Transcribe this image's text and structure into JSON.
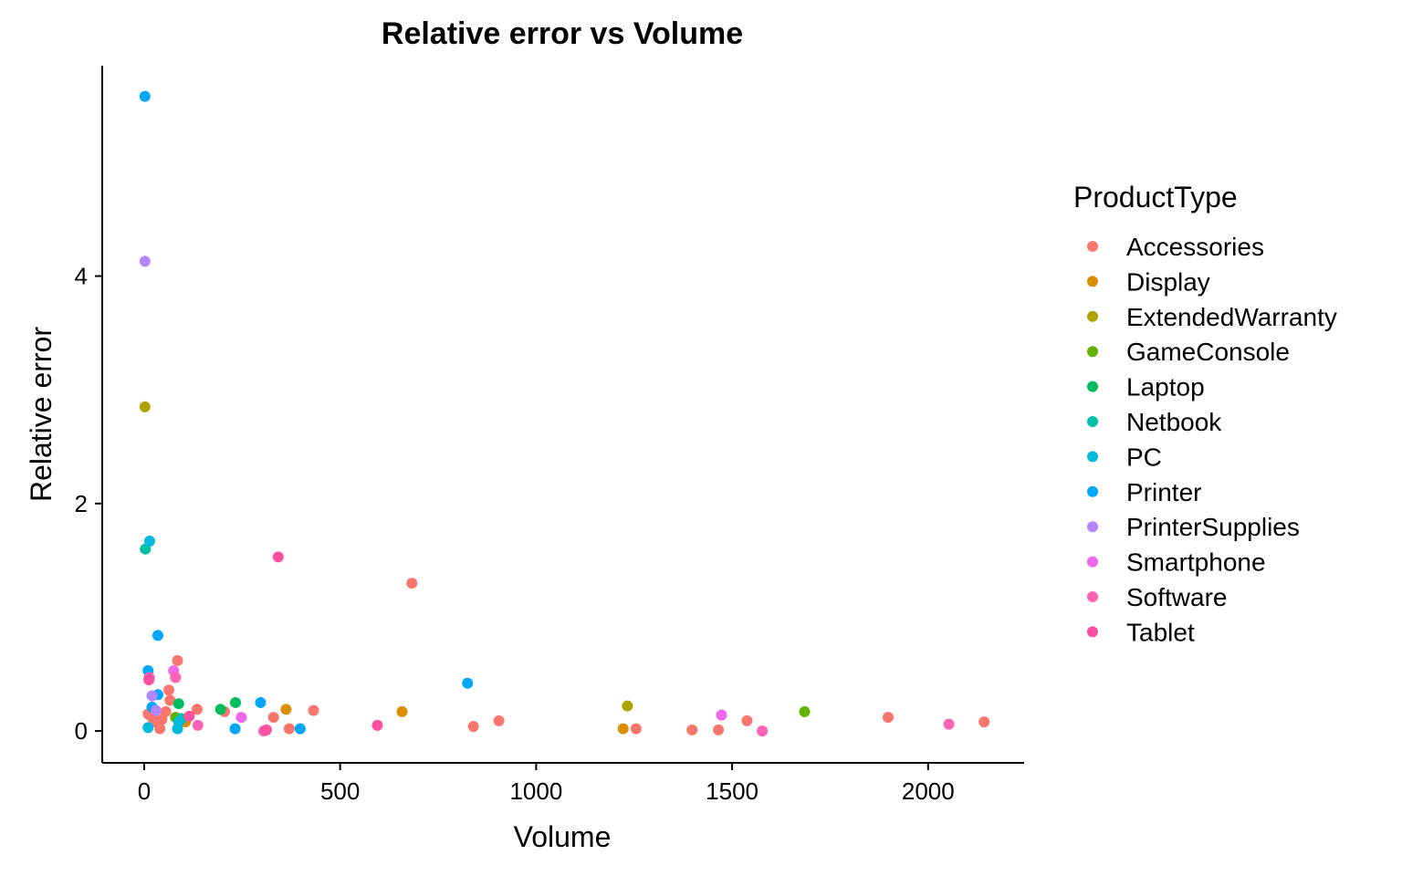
{
  "chart_data": {
    "type": "scatter",
    "title": "Relative error vs Volume",
    "xlabel": "Volume",
    "ylabel": "Relative error",
    "xlim": [
      -107,
      2245
    ],
    "ylim": [
      -0.28,
      5.85
    ],
    "xticks": [
      0,
      500,
      1000,
      1500,
      2000
    ],
    "xtick_labels": [
      "0",
      "500",
      "1000",
      "1500",
      "2000"
    ],
    "yticks": [
      0,
      2,
      4
    ],
    "ytick_labels": [
      "0",
      "2",
      "4"
    ],
    "grid": false,
    "legend": {
      "title": "ProductType",
      "placement": "right"
    },
    "series": [
      {
        "name": "Accessories",
        "color": "#F8766D",
        "points": [
          [
            10,
            0.15
          ],
          [
            20,
            0.12
          ],
          [
            30,
            0.08
          ],
          [
            40,
            0.02
          ],
          [
            45,
            0.1
          ],
          [
            55,
            0.17
          ],
          [
            63,
            0.36
          ],
          [
            66,
            0.27
          ],
          [
            85,
            0.62
          ],
          [
            135,
            0.19
          ],
          [
            205,
            0.17
          ],
          [
            330,
            0.12
          ],
          [
            370,
            0.02
          ],
          [
            432,
            0.18
          ],
          [
            683,
            1.3
          ],
          [
            840,
            0.04
          ],
          [
            905,
            0.09
          ],
          [
            1255,
            0.02
          ],
          [
            1398,
            0.01
          ],
          [
            1465,
            0.01
          ],
          [
            1538,
            0.09
          ],
          [
            1898,
            0.12
          ],
          [
            2143,
            0.08
          ]
        ]
      },
      {
        "name": "Display",
        "color": "#DB8E00",
        "points": [
          [
            105,
            0.08
          ],
          [
            362,
            0.19
          ],
          [
            658,
            0.17
          ],
          [
            1222,
            0.02
          ]
        ]
      },
      {
        "name": "ExtendedWarranty",
        "color": "#AEA200",
        "points": [
          [
            2,
            2.85
          ],
          [
            1233,
            0.22
          ]
        ]
      },
      {
        "name": "GameConsole",
        "color": "#64B200",
        "points": [
          [
            80,
            0.12
          ],
          [
            1685,
            0.17
          ]
        ]
      },
      {
        "name": "Laptop",
        "color": "#00BD5C",
        "points": [
          [
            88,
            0.24
          ],
          [
            195,
            0.19
          ],
          [
            233,
            0.25
          ]
        ]
      },
      {
        "name": "Netbook",
        "color": "#00C1A7",
        "points": [
          [
            3,
            1.6
          ],
          [
            95,
            0.11
          ]
        ]
      },
      {
        "name": "PC",
        "color": "#00BADE",
        "points": [
          [
            14,
            1.67
          ],
          [
            10,
            0.03
          ],
          [
            85,
            0.02
          ],
          [
            88,
            0.08
          ]
        ]
      },
      {
        "name": "Printer",
        "color": "#00A6FF",
        "points": [
          [
            2,
            5.58
          ],
          [
            35,
            0.84
          ],
          [
            10,
            0.53
          ],
          [
            20,
            0.21
          ],
          [
            35,
            0.32
          ],
          [
            297,
            0.25
          ],
          [
            232,
            0.02
          ],
          [
            398,
            0.02
          ],
          [
            825,
            0.42
          ]
        ]
      },
      {
        "name": "PrinterSupplies",
        "color": "#B385FF",
        "points": [
          [
            2,
            4.13
          ],
          [
            20,
            0.31
          ],
          [
            30,
            0.18
          ]
        ]
      },
      {
        "name": "Smartphone",
        "color": "#EF67EB",
        "points": [
          [
            75,
            0.53
          ],
          [
            248,
            0.12
          ],
          [
            1473,
            0.14
          ]
        ]
      },
      {
        "name": "Software",
        "color": "#FF63B6",
        "points": [
          [
            13,
            0.47
          ],
          [
            80,
            0.47
          ],
          [
            137,
            0.05
          ],
          [
            305,
            0.0
          ],
          [
            1577,
            0.0
          ],
          [
            2053,
            0.06
          ]
        ]
      },
      {
        "name": "Tablet",
        "color": "#FF4FA0",
        "points": [
          [
            342,
            1.53
          ],
          [
            12,
            0.45
          ],
          [
            115,
            0.13
          ],
          [
            312,
            0.01
          ],
          [
            595,
            0.05
          ]
        ]
      }
    ]
  }
}
